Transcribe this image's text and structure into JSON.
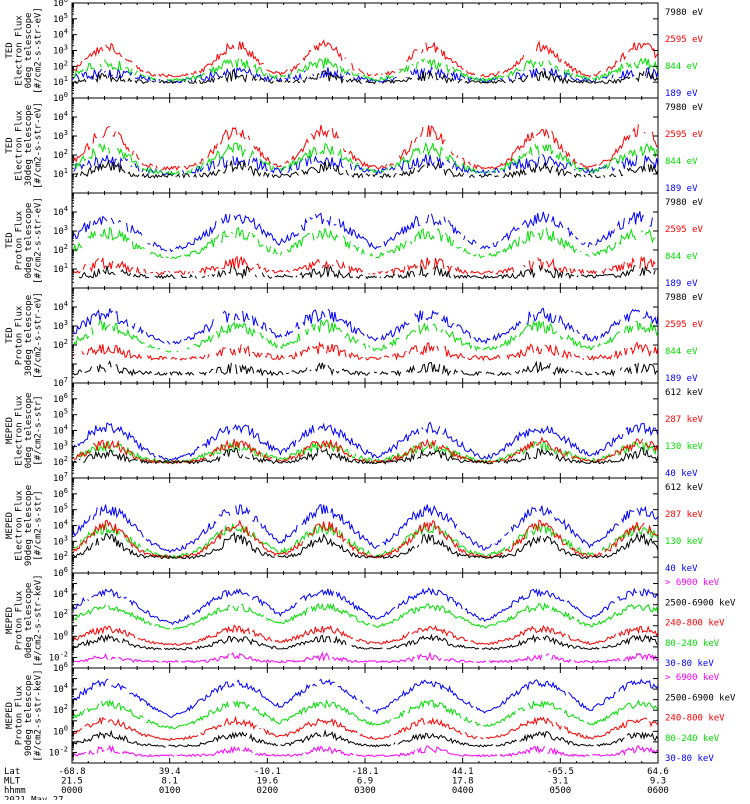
{
  "colors": {
    "black": "#000000",
    "red": "#ff0000",
    "green": "#00e000",
    "blue": "#0000ff",
    "magenta": "#ff00ff",
    "frame": "#000000"
  },
  "footer": {
    "row_labels": [
      "Lat",
      "MLT",
      "hhmm"
    ],
    "date": "2021 May 27",
    "ticks": [
      {
        "lat": "-68.8",
        "mlt": "21.5",
        "hhmm": "0000"
      },
      {
        "lat": "39.4",
        "mlt": "8.1",
        "hhmm": "0100"
      },
      {
        "lat": "-10.1",
        "mlt": "19.6",
        "hhmm": "0200"
      },
      {
        "lat": "-18.1",
        "mlt": "6.9",
        "hhmm": "0300"
      },
      {
        "lat": "44.1",
        "mlt": "17.8",
        "hhmm": "0400"
      },
      {
        "lat": "-65.5",
        "mlt": "3.1",
        "hhmm": "0500"
      },
      {
        "lat": "64.6",
        "mlt": "9.3",
        "hhmm": "0600"
      }
    ]
  },
  "chart_data": [
    {
      "type": "line",
      "ylabel": [
        "TED",
        "Electron Flux",
        "0deg telescope",
        "[#/cm2-s-str-eV]"
      ],
      "yscale": "log",
      "ylim_exp": [
        0,
        6
      ],
      "ytick_exps": [
        0,
        1,
        2,
        3,
        4,
        5,
        6
      ],
      "xlim": [
        "0000",
        "0600"
      ],
      "series": [
        {
          "name": "7980 eV",
          "color": "#000000",
          "base": 1.0,
          "amp": 0.4
        },
        {
          "name": "2595 eV",
          "color": "#ff0000",
          "base": 1.4,
          "amp": 1.9
        },
        {
          "name": "844 eV",
          "color": "#00e000",
          "base": 1.1,
          "amp": 1.1
        },
        {
          "name": "189 eV",
          "color": "#0000ff",
          "base": 1.0,
          "amp": 0.6
        }
      ]
    },
    {
      "type": "line",
      "ylabel": [
        "TED",
        "Electron Flux",
        "30deg telescope",
        "[#/cm2-s-str-eV]"
      ],
      "yscale": "log",
      "ylim_exp": [
        0,
        5
      ],
      "ytick_exps": [
        1,
        2,
        3,
        4
      ],
      "xlim": [
        "0000",
        "0600"
      ],
      "series": [
        {
          "name": "7980 eV",
          "color": "#000000",
          "base": 0.9,
          "amp": 0.5
        },
        {
          "name": "2595 eV",
          "color": "#ff0000",
          "base": 1.3,
          "amp": 2.0
        },
        {
          "name": "844 eV",
          "color": "#00e000",
          "base": 1.0,
          "amp": 1.3
        },
        {
          "name": "189 eV",
          "color": "#0000ff",
          "base": 1.0,
          "amp": 0.7
        }
      ]
    },
    {
      "type": "line",
      "ylabel": [
        "TED",
        "Proton Flux",
        "0deg telescope",
        "[#/cm2-s-str-eV]"
      ],
      "yscale": "log",
      "ylim_exp": [
        0,
        5
      ],
      "ytick_exps": [
        1,
        2,
        3,
        4
      ],
      "xlim": [
        "0000",
        "0600"
      ],
      "series": [
        {
          "name": "7980 eV",
          "color": "#000000",
          "base": 0.6,
          "amp": 0.3
        },
        {
          "name": "2595 eV",
          "color": "#ff0000",
          "base": 0.8,
          "amp": 0.5
        },
        {
          "name": "844 eV",
          "color": "#00e000",
          "base": 1.6,
          "amp": 1.3
        },
        {
          "name": "189 eV",
          "color": "#0000ff",
          "base": 1.9,
          "amp": 1.8
        }
      ]
    },
    {
      "type": "line",
      "ylabel": [
        "TED",
        "Proton Flux",
        "30deg telescope",
        "[#/cm2-s-str-eV]"
      ],
      "yscale": "log",
      "ylim_exp": [
        0,
        5
      ],
      "ytick_exps": [
        2,
        3,
        4
      ],
      "xlim": [
        "0000",
        "0600"
      ],
      "series": [
        {
          "name": "7980 eV",
          "color": "#000000",
          "base": 0.5,
          "amp": 0.3
        },
        {
          "name": "2595 eV",
          "color": "#ff0000",
          "base": 1.3,
          "amp": 0.5
        },
        {
          "name": "844 eV",
          "color": "#00e000",
          "base": 1.7,
          "amp": 1.3
        },
        {
          "name": "189 eV",
          "color": "#0000ff",
          "base": 2.0,
          "amp": 1.6
        }
      ]
    },
    {
      "type": "line",
      "ylabel": [
        "MEPED",
        "Electron Flux",
        "0deg telescope",
        "[#/cm2-s-str]"
      ],
      "yscale": "log",
      "ylim_exp": [
        1,
        7
      ],
      "ytick_exps": [
        2,
        3,
        4,
        5,
        6,
        7
      ],
      "xlim": [
        "0000",
        "0600"
      ],
      "series": [
        {
          "name": "612 keV",
          "color": "#000000",
          "base": 2.0,
          "amp": 0.6
        },
        {
          "name": "287 keV",
          "color": "#ff0000",
          "base": 2.0,
          "amp": 1.2
        },
        {
          "name": "130 keV",
          "color": "#00e000",
          "base": 2.0,
          "amp": 1.0
        },
        {
          "name": "40 keV",
          "color": "#0000ff",
          "base": 2.0,
          "amp": 2.2
        }
      ]
    },
    {
      "type": "line",
      "ylabel": [
        "MEPED",
        "Electron Flux",
        "90deg telescope",
        "[#/cm2-s-str]"
      ],
      "yscale": "log",
      "ylim_exp": [
        1,
        7
      ],
      "ytick_exps": [
        2,
        3,
        4,
        5,
        6,
        7
      ],
      "xlim": [
        "0000",
        "0600"
      ],
      "series": [
        {
          "name": "612 keV",
          "color": "#000000",
          "base": 2.0,
          "amp": 1.2
        },
        {
          "name": "287 keV",
          "color": "#ff0000",
          "base": 2.0,
          "amp": 2.0
        },
        {
          "name": "130 keV",
          "color": "#00e000",
          "base": 2.0,
          "amp": 1.8
        },
        {
          "name": "40 keV",
          "color": "#0000ff",
          "base": 2.2,
          "amp": 2.8
        }
      ]
    },
    {
      "type": "line",
      "ylabel": [
        "MEPED",
        "Proton Flux",
        "0deg telescope",
        "[#/cm2-s-str-keV]"
      ],
      "yscale": "log",
      "ylim_exp": [
        -3,
        6
      ],
      "ytick_exps": [
        -2,
        0,
        2,
        4,
        6
      ],
      "xlim": [
        "0000",
        "0600"
      ],
      "series": [
        {
          "name": "> 6900 keV",
          "color": "#ff00ff",
          "base": -2.4,
          "amp": 0.5
        },
        {
          "name": "2500-6900 keV",
          "color": "#000000",
          "base": -1.2,
          "amp": 1.0
        },
        {
          "name": "240-800 keV",
          "color": "#ff0000",
          "base": -0.8,
          "amp": 1.5
        },
        {
          "name": "80-240 keV",
          "color": "#00e000",
          "base": 0.6,
          "amp": 2.2
        },
        {
          "name": "30-80 keV",
          "color": "#0000ff",
          "base": 0.8,
          "amp": 3.4
        }
      ]
    },
    {
      "type": "line",
      "ylabel": [
        "MEPED",
        "Proton Flux",
        "90deg telescope",
        "[#/cm2-s-str-keV]"
      ],
      "yscale": "log",
      "ylim_exp": [
        -3,
        6
      ],
      "ytick_exps": [
        -2,
        0,
        2,
        4,
        6
      ],
      "xlim": [
        "0000",
        "0600"
      ],
      "series": [
        {
          "name": "> 6900 keV",
          "color": "#ff00ff",
          "base": -2.3,
          "amp": 0.6
        },
        {
          "name": "2500-6900 keV",
          "color": "#000000",
          "base": -1.4,
          "amp": 1.1
        },
        {
          "name": "240-800 keV",
          "color": "#ff0000",
          "base": -0.8,
          "amp": 1.8
        },
        {
          "name": "80-240 keV",
          "color": "#00e000",
          "base": 0.2,
          "amp": 2.4
        },
        {
          "name": "30-80 keV",
          "color": "#0000ff",
          "base": 1.0,
          "amp": 3.6
        }
      ]
    }
  ]
}
